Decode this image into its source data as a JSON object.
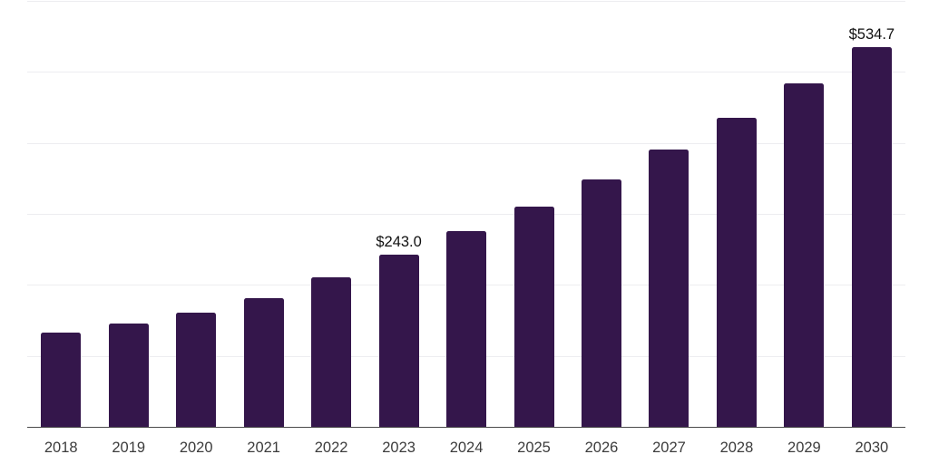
{
  "chart_data": {
    "type": "bar",
    "title": "",
    "categories": [
      "2018",
      "2019",
      "2020",
      "2021",
      "2022",
      "2023",
      "2024",
      "2025",
      "2026",
      "2027",
      "2028",
      "2029",
      "2030"
    ],
    "values": [
      132.7,
      145.3,
      160.3,
      181.5,
      211.2,
      243.0,
      275.6,
      310.0,
      348.9,
      390.1,
      435.9,
      483.4,
      534.7
    ],
    "data_labels": {
      "2023": "$243.0",
      "2030": "$534.7"
    },
    "xlabel": "",
    "ylabel": "",
    "ylim": [
      0,
      600
    ],
    "gridline_step": 100,
    "grid": true,
    "legend": false,
    "colors": {
      "bar": "#34164b",
      "gridline": "#ededf0",
      "axis_line": "#4a4a4a",
      "tick_label": "#3c3c3c",
      "value_label": "#111111",
      "background": "#ffffff"
    }
  }
}
